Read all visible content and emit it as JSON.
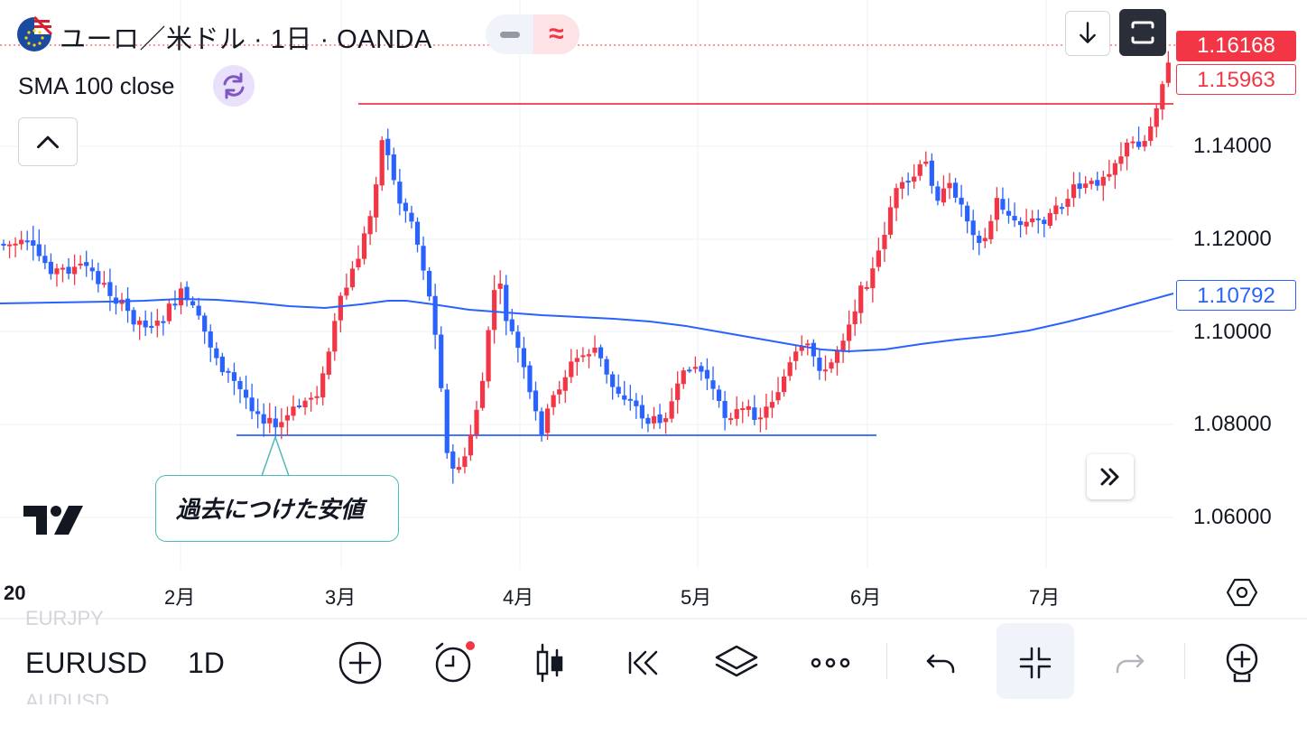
{
  "header": {
    "symbol_title": "ユーロ／米ドル · 1日 · OANDA",
    "flag_icon": "eu-us-flag-icon",
    "pill_left_icon": "minus-icon",
    "pill_right_icon": "approx-icon"
  },
  "indicator": {
    "label": "SMA 100 close",
    "color": "#2962ff"
  },
  "price_tags": {
    "last_price": "1.16168",
    "ask_price": "1.15963",
    "sma_value": "1.10792"
  },
  "y_axis": {
    "labels": [
      "1.14000",
      "1.12000",
      "1.10000",
      "1.08000",
      "1.06000"
    ]
  },
  "x_axis": {
    "labels": [
      "20",
      "2月",
      "3月",
      "4月",
      "5月",
      "6月",
      "7月"
    ]
  },
  "annotation": {
    "callout_text": "過去につけた安値",
    "support_color": "#2962ff",
    "resistance_color": "#f23645"
  },
  "colors": {
    "up": "#f23645",
    "down": "#2962ff",
    "background": "#ffffff"
  },
  "bottom_bar": {
    "symbol_prev": "EURJPY",
    "symbol": "EURUSD",
    "symbol_next": "AUDUSD",
    "timeframe": "1D",
    "icons": [
      "add-circle-icon",
      "alarm-clock-icon",
      "candles-icon",
      "replay-icon",
      "layers-icon",
      "more-icon",
      "undo-icon",
      "collapse-icon",
      "redo-icon",
      "add-indicator-icon"
    ]
  }
}
